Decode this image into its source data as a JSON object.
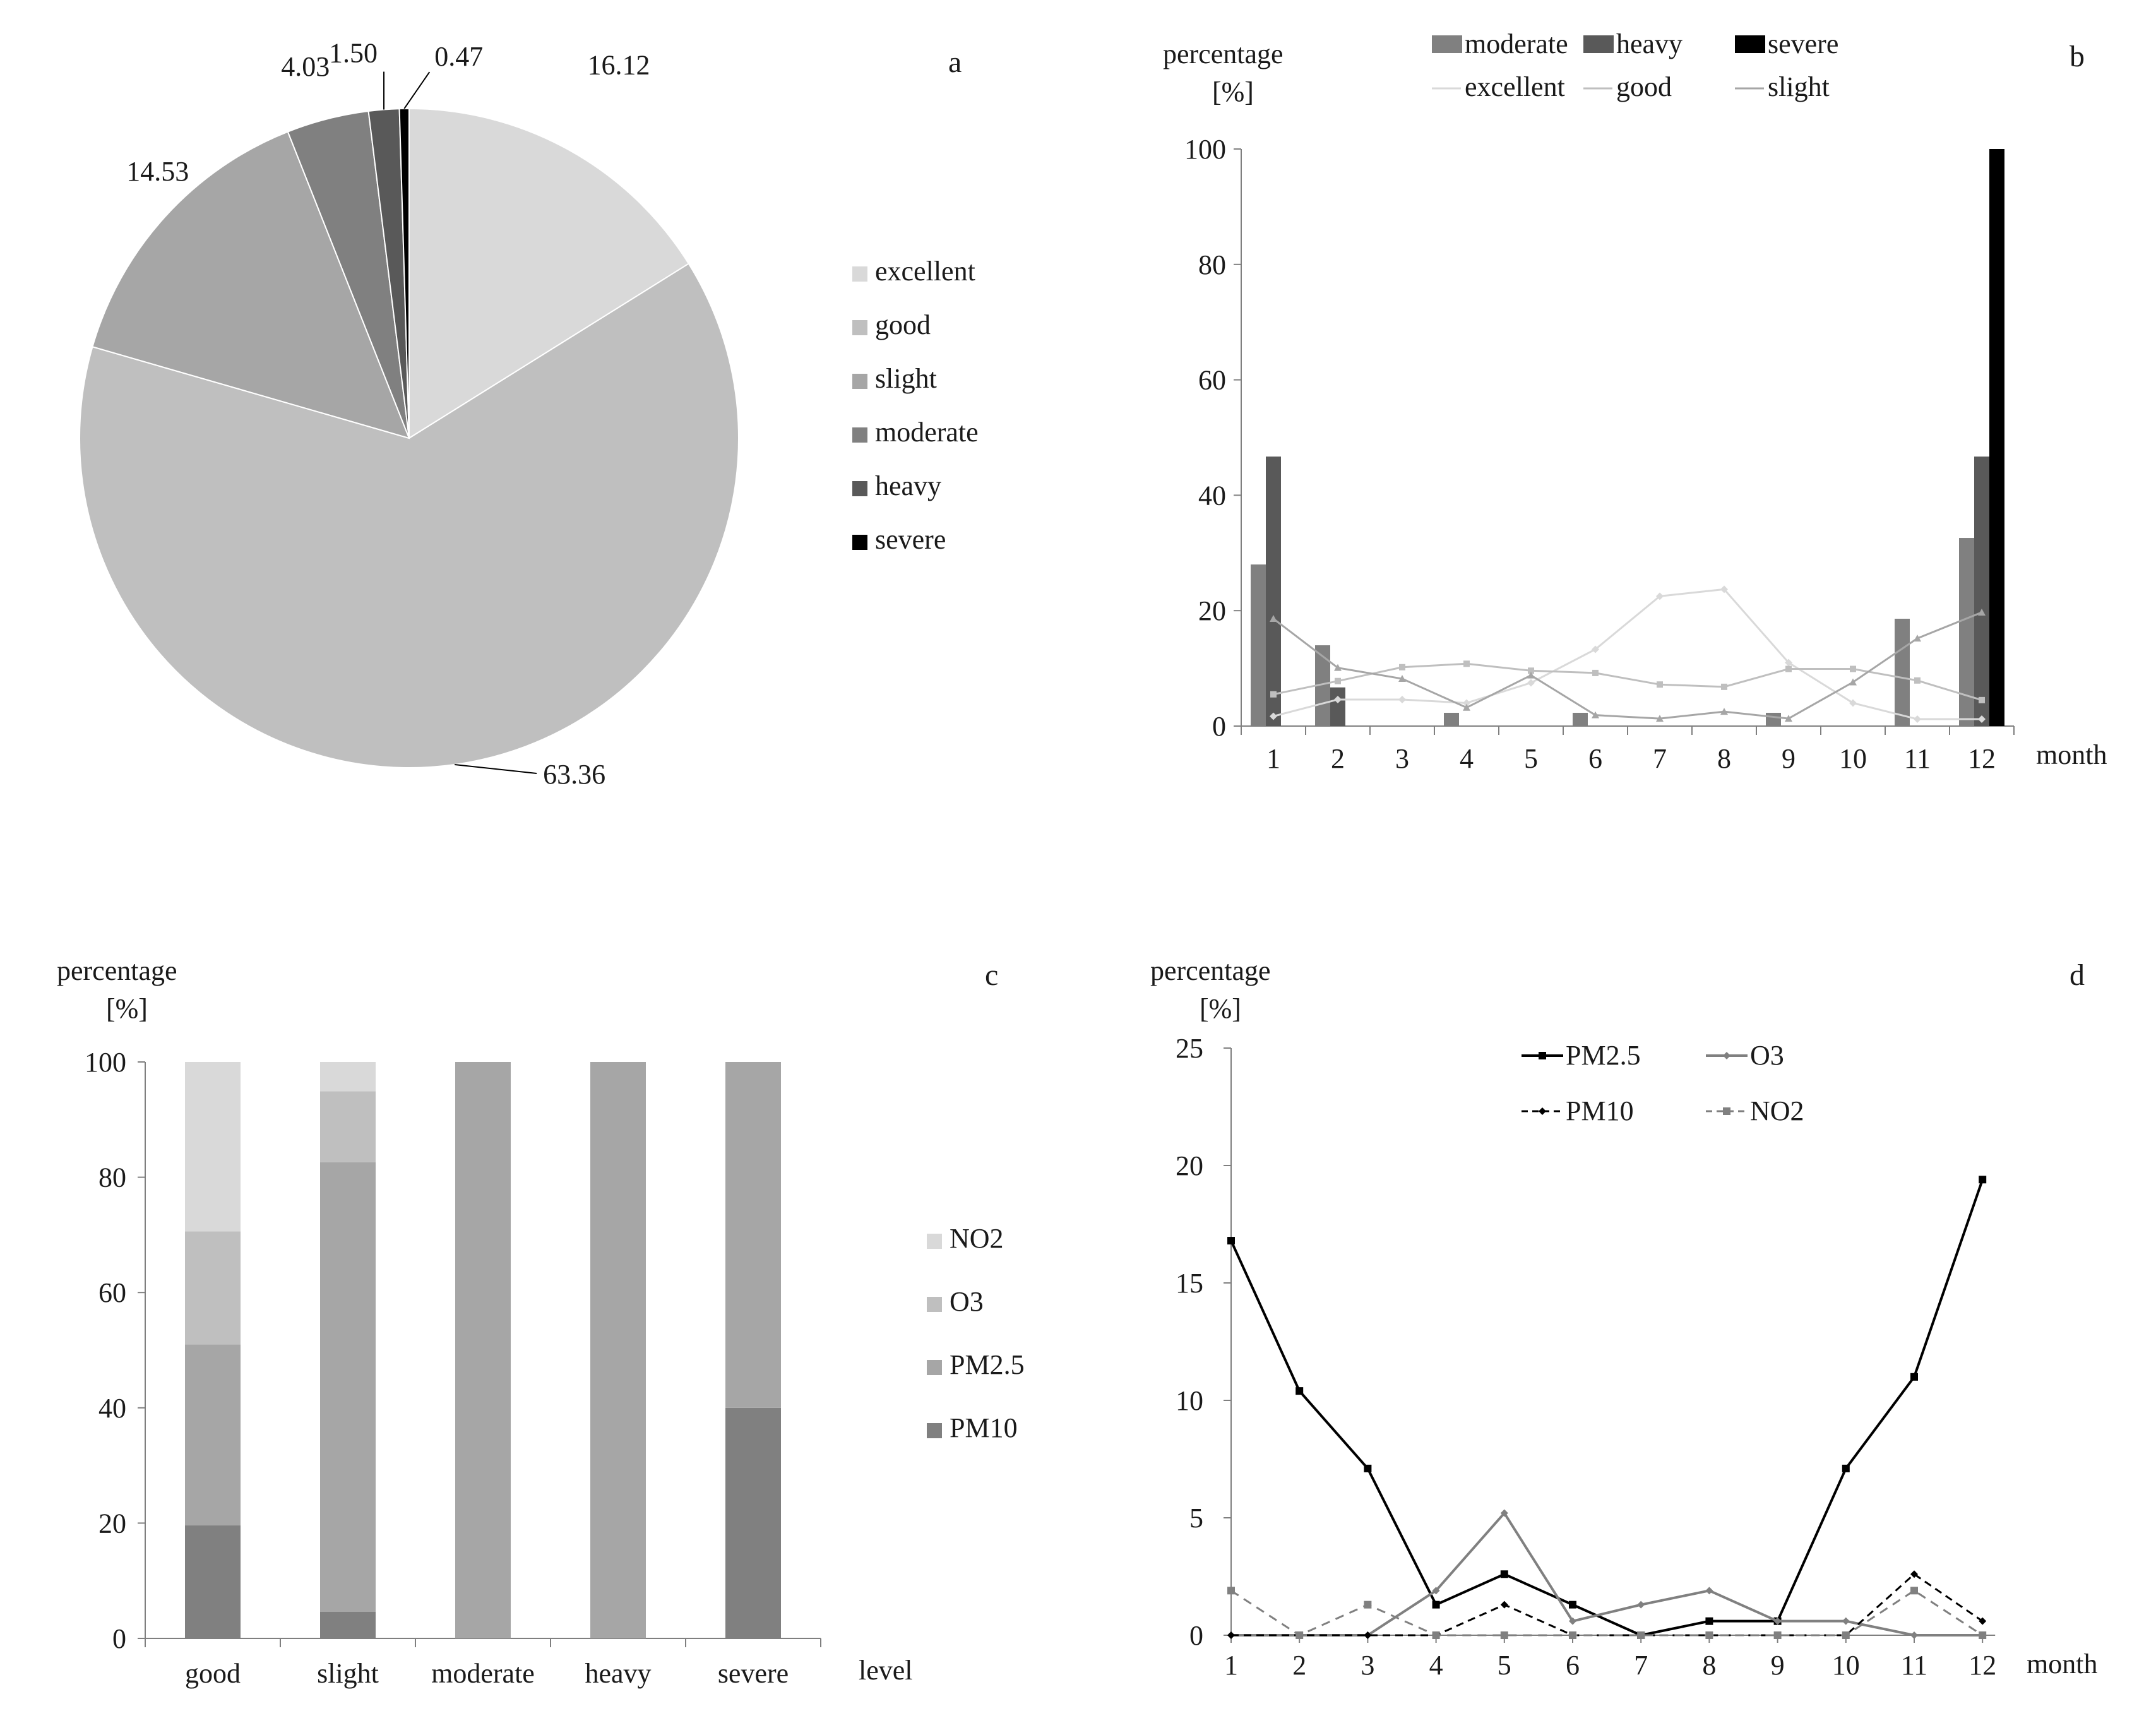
{
  "colors": {
    "excellent": "#d9d9d9",
    "good": "#bfbfbf",
    "slight": "#a6a6a6",
    "moderate": "#808080",
    "heavy": "#595959",
    "severe": "#000000",
    "NO2": "#d9d9d9",
    "O3": "#bfbfbf",
    "PM2.5": "#a6a6a6",
    "PM10": "#808080",
    "axis": "#7f7f7f",
    "pm25_line": "#000000",
    "o3_line": "#808080",
    "pm10_line": "#000000",
    "no2_line": "#808080"
  },
  "chart_data": [
    {
      "id": "a",
      "type": "pie",
      "panel_label": "a",
      "categories": [
        "excellent",
        "good",
        "slight",
        "moderate",
        "heavy",
        "severe"
      ],
      "values": [
        16.12,
        63.36,
        14.53,
        4.03,
        1.5,
        0.47
      ],
      "value_labels": [
        "16.12",
        "63.36",
        "14.53",
        "4.03",
        "1.50",
        "0.47"
      ],
      "legend": [
        "excellent",
        "good",
        "slight",
        "moderate",
        "heavy",
        "severe"
      ],
      "legend_position": "right"
    },
    {
      "id": "b",
      "type": "bar+line",
      "panel_label": "b",
      "ylabel_line1": "percentage",
      "ylabel_line2": "[%]",
      "xlabel": "month",
      "categories": [
        "1",
        "2",
        "3",
        "4",
        "5",
        "6",
        "7",
        "8",
        "9",
        "10",
        "11",
        "12"
      ],
      "ylim": [
        0,
        100
      ],
      "yticks": [
        "0",
        "20",
        "40",
        "60",
        "80",
        "100"
      ],
      "bar_series": [
        {
          "name": "moderate",
          "values": [
            28,
            14,
            0,
            2.3,
            0,
            2.3,
            0,
            0,
            2.3,
            0,
            18.6,
            32.6
          ]
        },
        {
          "name": "heavy",
          "values": [
            46.7,
            6.7,
            0,
            0,
            0,
            0,
            0,
            0,
            0,
            0,
            0,
            46.7
          ]
        },
        {
          "name": "severe",
          "values": [
            0,
            0,
            0,
            0,
            0,
            0,
            0,
            0,
            0,
            0,
            0,
            100
          ]
        }
      ],
      "line_series": [
        {
          "name": "excellent",
          "values": [
            1.7,
            4.6,
            4.6,
            4.0,
            7.5,
            13.3,
            22.5,
            23.7,
            11.0,
            4.0,
            1.2,
            1.2
          ]
        },
        {
          "name": "good",
          "values": [
            5.5,
            7.8,
            10.2,
            10.8,
            9.6,
            9.2,
            7.2,
            6.8,
            9.9,
            9.9,
            7.9,
            4.5
          ]
        },
        {
          "name": "slight",
          "values": [
            18.6,
            10.1,
            8.2,
            3.2,
            8.8,
            1.9,
            1.3,
            2.5,
            1.3,
            7.6,
            15.2,
            19.7
          ]
        }
      ],
      "legend": [
        "moderate",
        "heavy",
        "severe",
        "excellent",
        "good",
        "slight"
      ],
      "legend_position": "top"
    },
    {
      "id": "c",
      "type": "stacked-bar",
      "panel_label": "c",
      "ylabel_line1": "percentage",
      "ylabel_line2": "[%]",
      "xlabel": "level",
      "categories": [
        "good",
        "slight",
        "moderate",
        "heavy",
        "severe"
      ],
      "ylim": [
        0,
        100
      ],
      "yticks": [
        "0",
        "20",
        "40",
        "60",
        "80",
        "100"
      ],
      "series": [
        {
          "name": "PM10",
          "values": [
            19.6,
            4.6,
            0,
            0,
            40
          ]
        },
        {
          "name": "PM2.5",
          "values": [
            31.4,
            78.0,
            100,
            100,
            60
          ]
        },
        {
          "name": "O3",
          "values": [
            19.6,
            12.3,
            0,
            0,
            0
          ]
        },
        {
          "name": "NO2",
          "values": [
            29.4,
            5.1,
            0,
            0,
            0
          ]
        }
      ],
      "legend": [
        "NO2",
        "O3",
        "PM2.5",
        "PM10"
      ],
      "legend_position": "right"
    },
    {
      "id": "d",
      "type": "line",
      "panel_label": "d",
      "ylabel_line1": "percentage",
      "ylabel_line2": "[%]",
      "xlabel": "month",
      "x": [
        "1",
        "2",
        "3",
        "4",
        "5",
        "6",
        "7",
        "8",
        "9",
        "10",
        "11",
        "12"
      ],
      "ylim": [
        0,
        25
      ],
      "yticks": [
        "0",
        "5",
        "10",
        "15",
        "20",
        "25"
      ],
      "series": [
        {
          "name": "PM2.5",
          "values": [
            16.8,
            10.4,
            7.1,
            1.3,
            2.6,
            1.3,
            0,
            0.6,
            0.6,
            7.1,
            11.0,
            19.4
          ]
        },
        {
          "name": "O3",
          "values": [
            0,
            0,
            0,
            1.9,
            5.2,
            0.6,
            1.3,
            1.9,
            0.6,
            0.6,
            0,
            0
          ]
        },
        {
          "name": "PM10",
          "values": [
            0,
            0,
            0,
            0,
            1.3,
            0,
            0,
            0,
            0,
            0,
            2.6,
            0.6
          ]
        },
        {
          "name": "NO2",
          "values": [
            1.9,
            0,
            1.3,
            0,
            0,
            0,
            0,
            0,
            0,
            0,
            1.9,
            0
          ]
        }
      ],
      "legend": [
        "PM2.5",
        "O3",
        "PM10",
        "NO2"
      ],
      "legend_position": "top"
    }
  ]
}
